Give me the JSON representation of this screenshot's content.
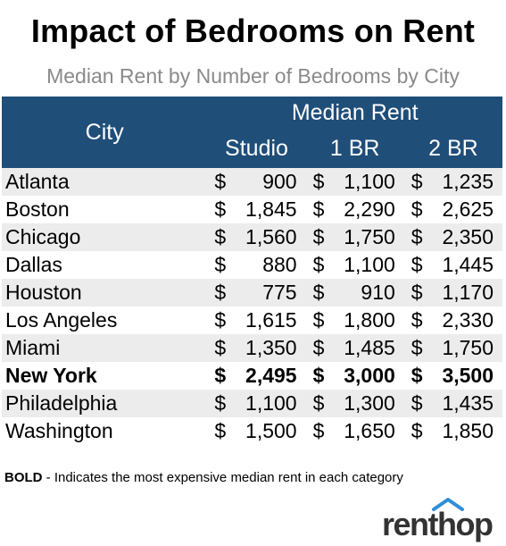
{
  "title": "Impact of Bedrooms on Rent",
  "subtitle": "Median Rent by Number of Bedrooms by City",
  "table": {
    "city_header": "City",
    "group_header": "Median Rent",
    "columns": [
      "Studio",
      "1 BR",
      "2 BR"
    ],
    "currency": "$",
    "rows": [
      {
        "city": "Atlanta",
        "values": [
          "900",
          "1,100",
          "1,235"
        ],
        "bold": false
      },
      {
        "city": "Boston",
        "values": [
          "1,845",
          "2,290",
          "2,625"
        ],
        "bold": false
      },
      {
        "city": "Chicago",
        "values": [
          "1,560",
          "1,750",
          "2,350"
        ],
        "bold": false
      },
      {
        "city": "Dallas",
        "values": [
          "880",
          "1,100",
          "1,445"
        ],
        "bold": false
      },
      {
        "city": "Houston",
        "values": [
          "775",
          "910",
          "1,170"
        ],
        "bold": false
      },
      {
        "city": "Los Angeles",
        "values": [
          "1,615",
          "1,800",
          "2,330"
        ],
        "bold": false
      },
      {
        "city": "Miami",
        "values": [
          "1,350",
          "1,485",
          "1,750"
        ],
        "bold": false
      },
      {
        "city": "New York",
        "values": [
          "2,495",
          "3,000",
          "3,500"
        ],
        "bold": true
      },
      {
        "city": "Philadelphia",
        "values": [
          "1,100",
          "1,300",
          "1,435"
        ],
        "bold": false
      },
      {
        "city": "Washington",
        "values": [
          "1,500",
          "1,650",
          "1,850"
        ],
        "bold": false
      }
    ]
  },
  "note": {
    "bold_label": "BOLD",
    "text": " - Indicates the most expensive median rent in each category"
  },
  "logo": {
    "text": "renthop",
    "icon": "house-roof-icon"
  },
  "colors": {
    "header_bg": "#1f4e79",
    "stripe": "#ececec",
    "subtitle": "#8a8a8a"
  }
}
